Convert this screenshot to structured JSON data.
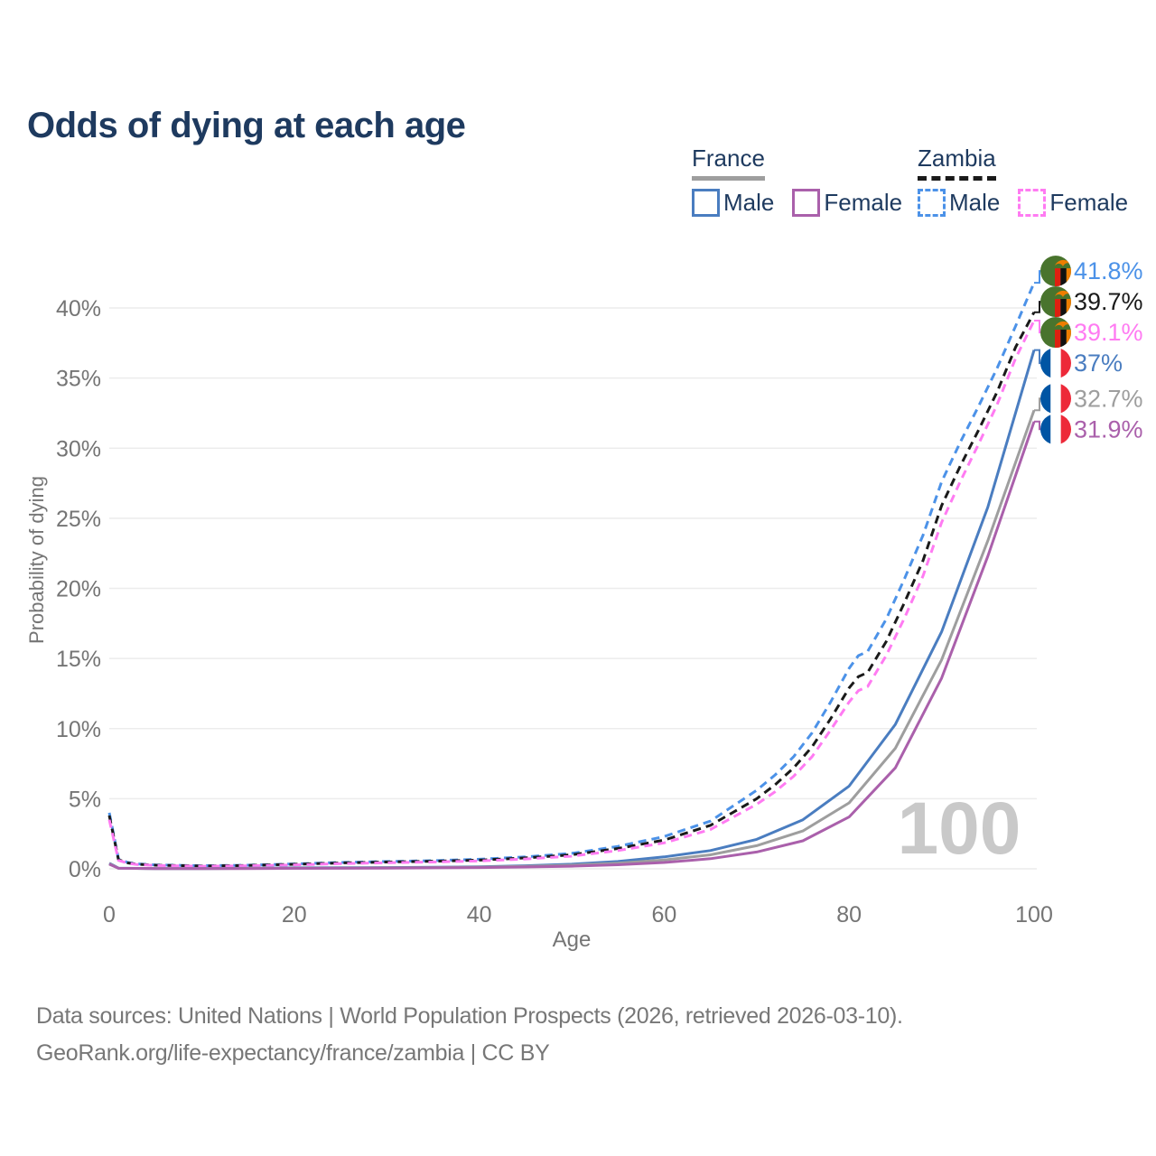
{
  "title": "Odds of dying at each age",
  "watermark": "100",
  "legend": {
    "groups": [
      {
        "label": "France",
        "line_style": "solid",
        "underline_color": "#9e9e9e",
        "items": [
          {
            "label": "Male",
            "color": "#4a7dc0"
          },
          {
            "label": "Female",
            "color": "#aa60ab"
          }
        ]
      },
      {
        "label": "Zambia",
        "line_style": "dashed",
        "underline_color": "#1a1a1a",
        "items": [
          {
            "label": "Male",
            "color": "#4c92e8"
          },
          {
            "label": "Female",
            "color": "#ff7bf2"
          }
        ]
      }
    ]
  },
  "footer": {
    "line1": "Data sources: United Nations | World Population Prospects (2026, retrieved 2026-03-10).",
    "line2": "GeoRank.org/life-expectancy/france/zambia | CC BY"
  },
  "chart_data": {
    "type": "line",
    "title": "Odds of dying at each age",
    "xlabel": "Age",
    "ylabel": "Probability of dying",
    "x_ticks": [
      0,
      20,
      40,
      60,
      80,
      100
    ],
    "y_ticks": [
      "0%",
      "5%",
      "10%",
      "15%",
      "20%",
      "25%",
      "30%",
      "35%",
      "40%"
    ],
    "xlim": [
      0,
      100
    ],
    "ylim": [
      0,
      43
    ],
    "grid": "horizontal",
    "legend_position": "top-right",
    "age_watermark": "100",
    "series": [
      {
        "name": "Zambia Male",
        "country": "Zambia",
        "sex": "male",
        "color": "#4c92e8",
        "label_color": "#4c92e8",
        "dash": "dashed",
        "flag": "zambia",
        "end_label": "41.8%",
        "end_value": 41.8,
        "points": [
          [
            0,
            4.0
          ],
          [
            1,
            0.7
          ],
          [
            2,
            0.45
          ],
          [
            3,
            0.35
          ],
          [
            5,
            0.28
          ],
          [
            10,
            0.22
          ],
          [
            15,
            0.26
          ],
          [
            20,
            0.35
          ],
          [
            25,
            0.45
          ],
          [
            30,
            0.52
          ],
          [
            35,
            0.58
          ],
          [
            40,
            0.68
          ],
          [
            45,
            0.85
          ],
          [
            50,
            1.1
          ],
          [
            55,
            1.6
          ],
          [
            60,
            2.3
          ],
          [
            65,
            3.4
          ],
          [
            70,
            5.6
          ],
          [
            72,
            6.7
          ],
          [
            74,
            8.0
          ],
          [
            76,
            9.7
          ],
          [
            78,
            11.9
          ],
          [
            80,
            14.3
          ],
          [
            81,
            15.2
          ],
          [
            82,
            15.5
          ],
          [
            84,
            17.8
          ],
          [
            86,
            20.7
          ],
          [
            88,
            23.8
          ],
          [
            90,
            27.6
          ],
          [
            92,
            30.4
          ],
          [
            94,
            33.0
          ],
          [
            96,
            35.7
          ],
          [
            98,
            38.7
          ],
          [
            100,
            41.8
          ]
        ]
      },
      {
        "name": "Zambia Both sexes",
        "country": "Zambia",
        "sex": "both",
        "color": "#1a1a1a",
        "label_color": "#1a1a1a",
        "dash": "dashed",
        "flag": "zambia",
        "end_label": "39.7%",
        "end_value": 39.7,
        "points": [
          [
            0,
            3.8
          ],
          [
            1,
            0.65
          ],
          [
            2,
            0.42
          ],
          [
            3,
            0.33
          ],
          [
            5,
            0.26
          ],
          [
            10,
            0.2
          ],
          [
            15,
            0.24
          ],
          [
            20,
            0.32
          ],
          [
            25,
            0.42
          ],
          [
            30,
            0.48
          ],
          [
            35,
            0.54
          ],
          [
            40,
            0.62
          ],
          [
            45,
            0.78
          ],
          [
            50,
            1.0
          ],
          [
            55,
            1.45
          ],
          [
            60,
            2.05
          ],
          [
            65,
            3.1
          ],
          [
            70,
            5.0
          ],
          [
            72,
            6.0
          ],
          [
            74,
            7.2
          ],
          [
            76,
            8.7
          ],
          [
            78,
            10.7
          ],
          [
            80,
            12.9
          ],
          [
            81,
            13.7
          ],
          [
            82,
            14.0
          ],
          [
            84,
            16.2
          ],
          [
            86,
            19.0
          ],
          [
            88,
            22.0
          ],
          [
            90,
            25.9
          ],
          [
            92,
            28.7
          ],
          [
            94,
            31.3
          ],
          [
            96,
            34.0
          ],
          [
            98,
            37.2
          ],
          [
            100,
            39.7
          ]
        ]
      },
      {
        "name": "Zambia Female",
        "country": "Zambia",
        "sex": "female",
        "color": "#ff7bf2",
        "label_color": "#ff7bf2",
        "dash": "dashed",
        "flag": "zambia",
        "end_label": "39.1%",
        "end_value": 39.1,
        "points": [
          [
            0,
            3.5
          ],
          [
            1,
            0.6
          ],
          [
            2,
            0.4
          ],
          [
            3,
            0.3
          ],
          [
            5,
            0.24
          ],
          [
            10,
            0.18
          ],
          [
            15,
            0.21
          ],
          [
            20,
            0.28
          ],
          [
            25,
            0.37
          ],
          [
            30,
            0.43
          ],
          [
            35,
            0.48
          ],
          [
            40,
            0.56
          ],
          [
            45,
            0.7
          ],
          [
            50,
            0.9
          ],
          [
            55,
            1.3
          ],
          [
            60,
            1.85
          ],
          [
            65,
            2.8
          ],
          [
            70,
            4.6
          ],
          [
            72,
            5.5
          ],
          [
            74,
            6.6
          ],
          [
            76,
            8.0
          ],
          [
            78,
            9.9
          ],
          [
            80,
            11.9
          ],
          [
            81,
            12.7
          ],
          [
            82,
            13.0
          ],
          [
            84,
            15.2
          ],
          [
            86,
            17.9
          ],
          [
            88,
            20.9
          ],
          [
            90,
            24.7
          ],
          [
            92,
            27.6
          ],
          [
            94,
            30.3
          ],
          [
            96,
            33.1
          ],
          [
            98,
            36.4
          ],
          [
            100,
            39.1
          ]
        ]
      },
      {
        "name": "France Male",
        "country": "France",
        "sex": "male",
        "color": "#4a7dc0",
        "label_color": "#4a7dc0",
        "dash": "solid",
        "flag": "france",
        "end_label": "37%",
        "end_value": 37,
        "points": [
          [
            0,
            0.4
          ],
          [
            1,
            0.05
          ],
          [
            5,
            0.02
          ],
          [
            10,
            0.02
          ],
          [
            15,
            0.04
          ],
          [
            20,
            0.07
          ],
          [
            25,
            0.08
          ],
          [
            30,
            0.09
          ],
          [
            35,
            0.11
          ],
          [
            40,
            0.15
          ],
          [
            45,
            0.22
          ],
          [
            50,
            0.33
          ],
          [
            55,
            0.52
          ],
          [
            60,
            0.85
          ],
          [
            65,
            1.3
          ],
          [
            70,
            2.1
          ],
          [
            75,
            3.5
          ],
          [
            80,
            5.9
          ],
          [
            85,
            10.3
          ],
          [
            90,
            16.9
          ],
          [
            95,
            25.8
          ],
          [
            100,
            37.0
          ]
        ]
      },
      {
        "name": "France Both sexes",
        "country": "France",
        "sex": "both",
        "color": "#9e9e9e",
        "label_color": "#9e9e9e",
        "dash": "solid",
        "flag": "france",
        "end_label": "32.7%",
        "end_value": 32.7,
        "points": [
          [
            0,
            0.37
          ],
          [
            1,
            0.04
          ],
          [
            5,
            0.02
          ],
          [
            10,
            0.02
          ],
          [
            15,
            0.03
          ],
          [
            20,
            0.05
          ],
          [
            25,
            0.06
          ],
          [
            30,
            0.07
          ],
          [
            35,
            0.09
          ],
          [
            40,
            0.12
          ],
          [
            45,
            0.18
          ],
          [
            50,
            0.26
          ],
          [
            55,
            0.4
          ],
          [
            60,
            0.63
          ],
          [
            65,
            1.0
          ],
          [
            70,
            1.65
          ],
          [
            75,
            2.7
          ],
          [
            80,
            4.7
          ],
          [
            85,
            8.6
          ],
          [
            90,
            14.9
          ],
          [
            95,
            23.4
          ],
          [
            100,
            32.7
          ]
        ]
      },
      {
        "name": "France Female",
        "country": "France",
        "sex": "female",
        "color": "#aa60ab",
        "label_color": "#aa60ab",
        "dash": "solid",
        "flag": "france",
        "end_label": "31.9%",
        "end_value": 31.9,
        "points": [
          [
            0,
            0.33
          ],
          [
            1,
            0.04
          ],
          [
            5,
            0.02
          ],
          [
            10,
            0.02
          ],
          [
            15,
            0.02
          ],
          [
            20,
            0.03
          ],
          [
            25,
            0.04
          ],
          [
            30,
            0.05
          ],
          [
            35,
            0.07
          ],
          [
            40,
            0.09
          ],
          [
            45,
            0.13
          ],
          [
            50,
            0.19
          ],
          [
            55,
            0.29
          ],
          [
            60,
            0.45
          ],
          [
            65,
            0.72
          ],
          [
            70,
            1.2
          ],
          [
            75,
            2.0
          ],
          [
            80,
            3.7
          ],
          [
            85,
            7.2
          ],
          [
            90,
            13.6
          ],
          [
            95,
            22.3
          ],
          [
            100,
            31.9
          ]
        ]
      }
    ]
  }
}
